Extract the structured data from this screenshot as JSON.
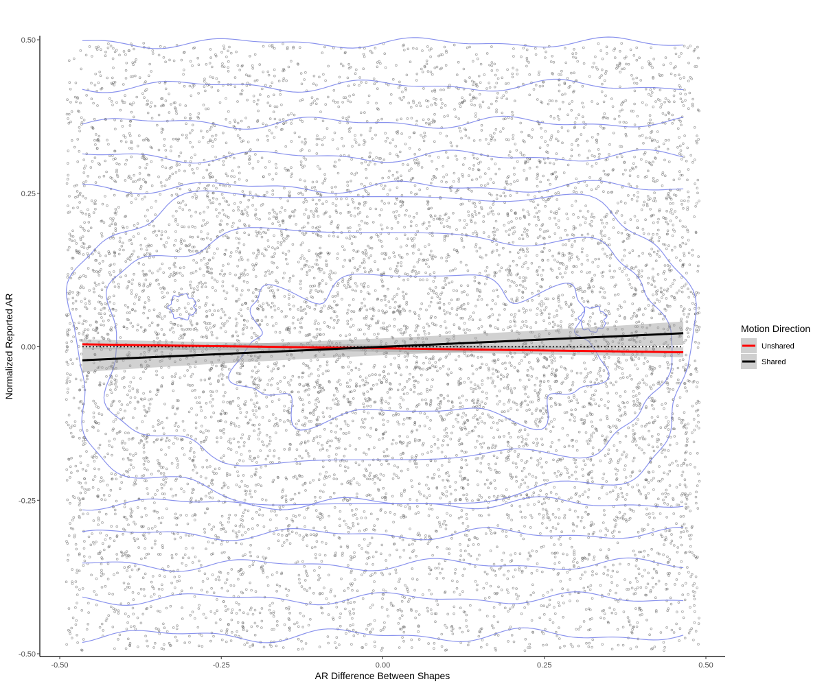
{
  "chart_data": {
    "type": "scatter",
    "title": "",
    "xlabel": "AR Difference Between Shapes",
    "ylabel": "Normalized Reported AR",
    "xlim": [
      -0.5,
      0.5
    ],
    "ylim": [
      -0.5,
      0.5
    ],
    "x_ticks": [
      -0.5,
      -0.25,
      0.0,
      0.25,
      0.5
    ],
    "x_tick_labels": [
      "-0.50",
      "-0.25",
      "0.00",
      "0.25",
      "0.50"
    ],
    "y_ticks": [
      -0.5,
      -0.25,
      0.0,
      0.25,
      0.5
    ],
    "y_tick_labels": [
      "-0.50",
      "-0.25",
      "0.00",
      "0.25",
      "0.50"
    ],
    "grid": false,
    "legend": {
      "title": "Motion Direction",
      "placement": "right",
      "entries": [
        {
          "label": "Unshared",
          "color": "#ff0000"
        },
        {
          "label": "Shared",
          "color": "#000000"
        }
      ]
    },
    "scatter": {
      "description_x_range": [
        -0.49,
        0.49
      ],
      "description_y_range": [
        -0.49,
        0.49
      ],
      "point_color": "#595959",
      "count_approx": 9000
    },
    "series": [
      {
        "name": "Unshared",
        "type": "regression",
        "color": "#ff0000",
        "x": [
          -0.465,
          0.465
        ],
        "y": [
          0.004,
          -0.009
        ],
        "ci_halfwidth": 0.005
      },
      {
        "name": "Shared",
        "type": "regression",
        "color": "#000000",
        "x": [
          -0.465,
          0.465
        ],
        "y": [
          -0.022,
          0.022
        ],
        "ci_halfwidth": 0.012
      }
    ],
    "reference_line": {
      "y": 0.0,
      "x": [
        -0.465,
        0.465
      ],
      "style": "dotted",
      "color": "#000000"
    },
    "density_contours": {
      "color": "#6c77e8",
      "levels": [
        {
          "type": "band",
          "y": 0.495,
          "amp": 0.006
        },
        {
          "type": "band",
          "y": 0.425,
          "amp": 0.007
        },
        {
          "type": "band",
          "y": 0.365,
          "amp": 0.007
        },
        {
          "type": "band",
          "y": 0.31,
          "amp": 0.007
        },
        {
          "type": "band",
          "y": 0.26,
          "amp": 0.007
        },
        {
          "type": "band",
          "y": -0.255,
          "amp": 0.007
        },
        {
          "type": "band",
          "y": -0.305,
          "amp": 0.007
        },
        {
          "type": "band",
          "y": -0.355,
          "amp": 0.007
        },
        {
          "type": "band",
          "y": -0.41,
          "amp": 0.007
        },
        {
          "type": "band",
          "y": -0.47,
          "amp": 0.008
        },
        {
          "type": "loop",
          "cx": -0.005,
          "cy": 0.0,
          "rx": 0.475,
          "ry": 0.25,
          "wobble": 0.012
        },
        {
          "type": "loop",
          "cx": 0.0,
          "cy": 0.0,
          "rx": 0.43,
          "ry": 0.185,
          "wobble": 0.012
        },
        {
          "type": "loop",
          "cx": 0.055,
          "cy": -0.005,
          "rx": 0.27,
          "ry": 0.11,
          "wobble": 0.02
        },
        {
          "type": "loop",
          "cx": -0.31,
          "cy": 0.065,
          "rx": 0.02,
          "ry": 0.02,
          "wobble": 0.002
        },
        {
          "type": "loop",
          "cx": 0.325,
          "cy": 0.045,
          "rx": 0.02,
          "ry": 0.02,
          "wobble": 0.002
        }
      ]
    }
  }
}
